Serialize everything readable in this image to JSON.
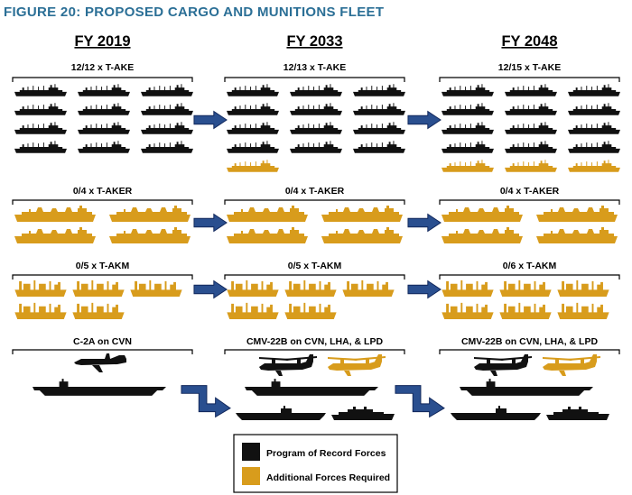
{
  "title": "FIGURE 20: PROPOSED CARGO AND MUNITIONS FLEET",
  "colors": {
    "record": "#111111",
    "additional": "#d89c1c",
    "arrow": "#2a4f8f",
    "title": "#2b6f96"
  },
  "columns": [
    {
      "year": "FY 2019",
      "groups": [
        {
          "label": "12/12 x T-AKE",
          "type": "take",
          "record": 12,
          "total": 12
        },
        {
          "label": "0/4 x T-AKER",
          "type": "taker",
          "record": 0,
          "total": 4
        },
        {
          "label": "0/5 x T-AKM",
          "type": "takm",
          "record": 0,
          "total": 5
        }
      ],
      "air": {
        "label": "C-2A on CVN",
        "aircraft": [
          {
            "type": "c2a",
            "status": "record"
          }
        ],
        "ships": [
          {
            "type": "cvn",
            "status": "record"
          }
        ]
      }
    },
    {
      "year": "FY 2033",
      "groups": [
        {
          "label": "12/13 x T-AKE",
          "type": "take",
          "record": 12,
          "total": 13
        },
        {
          "label": "0/4 x T-AKER",
          "type": "taker",
          "record": 0,
          "total": 4
        },
        {
          "label": "0/5 x T-AKM",
          "type": "takm",
          "record": 0,
          "total": 5
        }
      ],
      "air": {
        "label": "CMV-22B on CVN, LHA, & LPD",
        "aircraft": [
          {
            "type": "cmv22",
            "status": "record"
          },
          {
            "type": "cmv22",
            "status": "additional"
          }
        ],
        "ships": [
          {
            "type": "cvn",
            "status": "record"
          },
          {
            "type": "lha",
            "status": "record"
          },
          {
            "type": "lpd",
            "status": "record"
          }
        ]
      }
    },
    {
      "year": "FY 2048",
      "groups": [
        {
          "label": "12/15 x T-AKE",
          "type": "take",
          "record": 12,
          "total": 15
        },
        {
          "label": "0/4 x T-AKER",
          "type": "taker",
          "record": 0,
          "total": 4
        },
        {
          "label": "0/6 x T-AKM",
          "type": "takm",
          "record": 0,
          "total": 6
        }
      ],
      "air": {
        "label": "CMV-22B on CVN, LHA, & LPD",
        "aircraft": [
          {
            "type": "cmv22",
            "status": "record"
          },
          {
            "type": "cmv22",
            "status": "additional"
          }
        ],
        "ships": [
          {
            "type": "cvn",
            "status": "record"
          },
          {
            "type": "lha",
            "status": "record"
          },
          {
            "type": "lpd",
            "status": "record"
          }
        ]
      }
    }
  ],
  "legend": {
    "record_label": "Program of Record Forces",
    "additional_label": "Additional Forces Required"
  }
}
